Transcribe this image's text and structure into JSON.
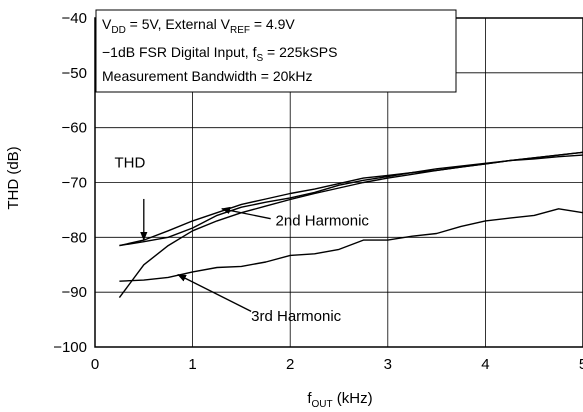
{
  "chart_data": {
    "type": "line",
    "xlabel": "f",
    "xlabel_sub": "OUT",
    "xlabel_unit": " (kHz)",
    "ylabel": "THD (dB)",
    "xlim": [
      0,
      5
    ],
    "ylim": [
      -100,
      -40
    ],
    "x_ticks": [
      "0",
      "1",
      "2",
      "3",
      "4",
      "5"
    ],
    "y_ticks": [
      "−40",
      "−50",
      "−60",
      "−70",
      "−80",
      "−90",
      "−100"
    ],
    "grid": true,
    "conditions": {
      "line1": {
        "a": "V",
        "a_sub": "DD",
        "b": " = 5V, External V",
        "b_sub": "REF",
        "c": " = 4.9V"
      },
      "line2": {
        "a": "−1dB FSR Digital Input, f",
        "a_sub": "S",
        "b": " = 225kSPS"
      },
      "line3": "Measurement Bandwidth = 20kHz"
    },
    "series": [
      {
        "name": "THD",
        "x": [
          0.25,
          0.5,
          0.75,
          1.0,
          1.25,
          1.5,
          1.75,
          2.0,
          2.25,
          2.5,
          2.75,
          3.0,
          3.25,
          3.5,
          3.75,
          4.0,
          4.25,
          4.5,
          4.75,
          5.0
        ],
        "values": [
          -81.5,
          -80.5,
          -78.8,
          -77.0,
          -75.5,
          -74.0,
          -73.0,
          -72.0,
          -71.2,
          -70.2,
          -69.2,
          -68.7,
          -68.2,
          -67.5,
          -67.0,
          -66.5,
          -66.0,
          -65.5,
          -65.0,
          -64.5
        ]
      },
      {
        "name": "2nd Harmonic",
        "x": [
          0.25,
          0.5,
          0.75,
          1.0,
          1.25,
          1.5,
          1.75,
          2.0,
          2.25,
          2.5,
          2.75,
          3.0,
          3.25,
          3.5,
          3.75,
          4.0,
          4.25,
          4.5,
          4.75,
          5.0
        ],
        "values": [
          -81.5,
          -80.8,
          -80.0,
          -78.3,
          -76.0,
          -74.5,
          -73.6,
          -72.8,
          -71.8,
          -70.5,
          -69.6,
          -68.9,
          -68.2,
          -67.8,
          -67.2,
          -66.6,
          -66.0,
          -65.7,
          -65.3,
          -65.0
        ]
      },
      {
        "name": "3rd Harmonic",
        "x": [
          0.25,
          0.5,
          0.75,
          1.0,
          1.25,
          1.5,
          1.75,
          2.0,
          2.25,
          2.5,
          2.75,
          3.0,
          3.25,
          3.5,
          3.75,
          4.0,
          4.25,
          4.5,
          4.75,
          5.0
        ],
        "values": [
          -88.0,
          -87.8,
          -87.3,
          -86.3,
          -85.5,
          -85.3,
          -84.5,
          -83.3,
          -83.0,
          -82.2,
          -80.5,
          -80.5,
          -79.8,
          -79.3,
          -78.0,
          -77.0,
          -76.5,
          -76.0,
          -74.8,
          -75.5
        ]
      },
      {
        "name": "",
        "x": [
          0.25,
          0.5,
          0.75,
          1.0,
          1.25,
          1.5,
          1.75,
          2.0,
          2.25,
          2.5,
          2.75,
          3.0,
          3.25,
          3.5,
          3.75,
          4.0,
          4.25,
          4.5,
          4.75,
          5.0
        ],
        "values": [
          -91.0,
          -85.0,
          -81.5,
          -78.8,
          -77.0,
          -75.5,
          -74.3,
          -73.1,
          -72.0,
          -71.0,
          -70.0,
          -69.2,
          -68.5,
          -67.8,
          -67.2,
          -66.6,
          -66.0,
          -65.5,
          -65.0,
          -64.5
        ]
      }
    ],
    "annotations": [
      {
        "text": "THD",
        "x": 0.2,
        "y": -67.3,
        "arrow_from": [
          0.5,
          -73.0
        ],
        "arrow_to": [
          0.5,
          -80.5
        ]
      },
      {
        "text": "2nd Harmonic",
        "x": 1.85,
        "y": -77.8,
        "arrow_from": [
          1.8,
          -76.6
        ],
        "arrow_to": [
          1.3,
          -74.8
        ]
      },
      {
        "text": "3rd Harmonic",
        "x": 1.6,
        "y": -95.3,
        "arrow_from": [
          1.6,
          -93.5
        ],
        "arrow_to": [
          0.85,
          -86.8
        ]
      }
    ]
  }
}
